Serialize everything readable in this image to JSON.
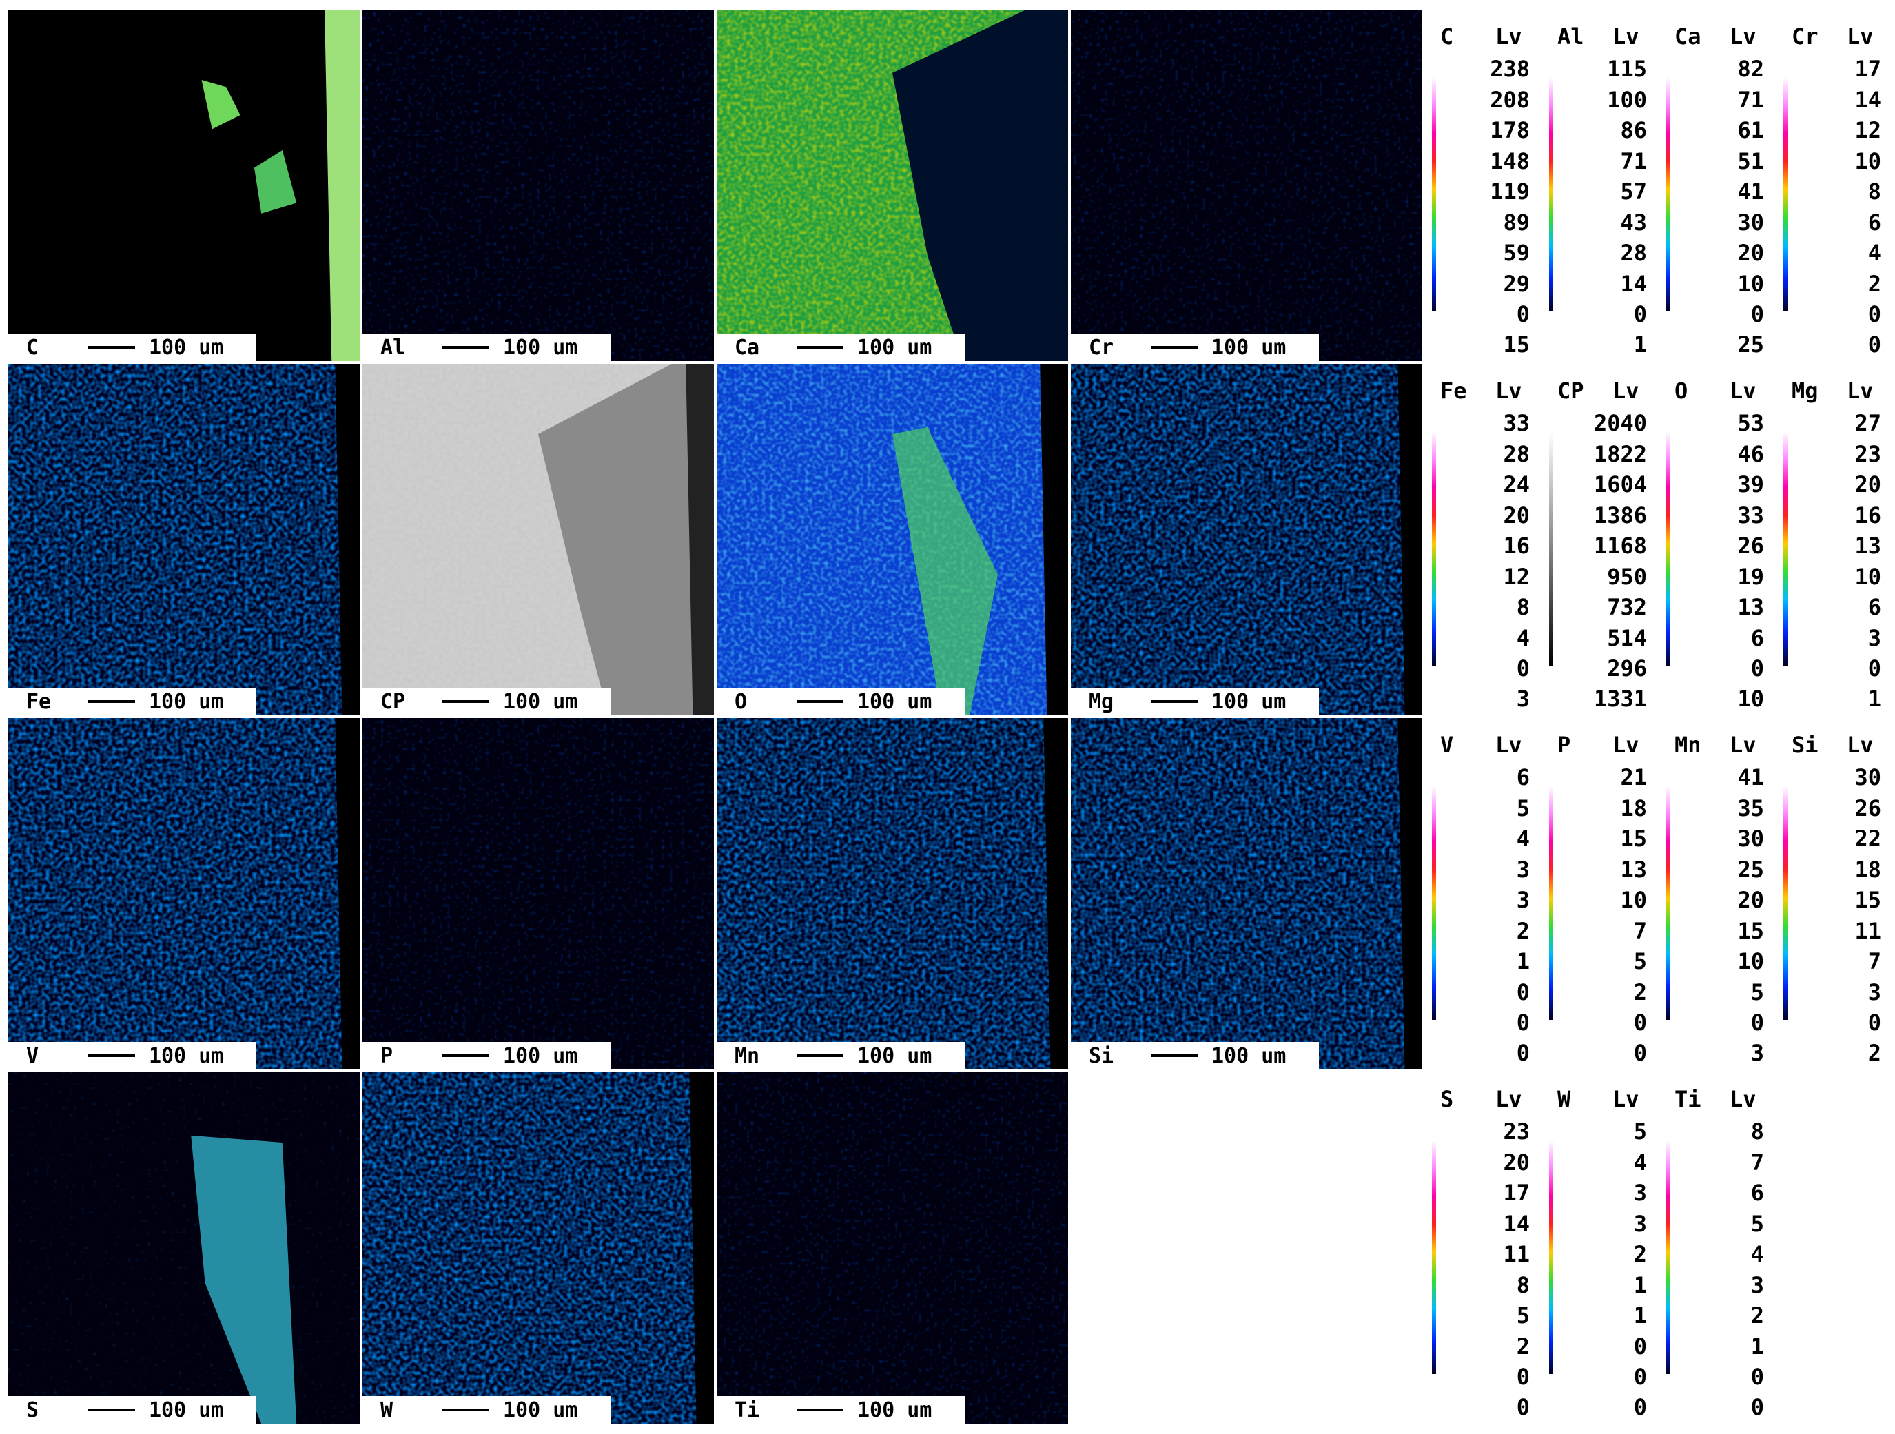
{
  "scale_label": "100 um",
  "panels": [
    {
      "element": "C",
      "style": "carbon"
    },
    {
      "element": "Al",
      "style": "sparse"
    },
    {
      "element": "Ca",
      "style": "calcium"
    },
    {
      "element": "Cr",
      "style": "sparse"
    },
    {
      "element": "Fe",
      "style": "blue"
    },
    {
      "element": "CP",
      "style": "grey"
    },
    {
      "element": "O",
      "style": "oxygen"
    },
    {
      "element": "Mg",
      "style": "blue"
    },
    {
      "element": "V",
      "style": "blue"
    },
    {
      "element": "P",
      "style": "sparse"
    },
    {
      "element": "Mn",
      "style": "blue"
    },
    {
      "element": "Si",
      "style": "blue"
    },
    {
      "element": "S",
      "style": "sulfur"
    },
    {
      "element": "W",
      "style": "blue"
    },
    {
      "element": "Ti",
      "style": "sparse"
    }
  ],
  "legend": [
    {
      "columns": [
        {
          "element": "C",
          "unit": "Lv",
          "levels": [
            "238",
            "208",
            "178",
            "148",
            "119",
            "89",
            "59",
            "29",
            "0"
          ],
          "bottom": "15"
        },
        {
          "element": "Al",
          "unit": "Lv",
          "levels": [
            "115",
            "100",
            "86",
            "71",
            "57",
            "43",
            "28",
            "14",
            "0"
          ],
          "bottom": "1"
        },
        {
          "element": "Ca",
          "unit": "Lv",
          "levels": [
            "82",
            "71",
            "61",
            "51",
            "41",
            "30",
            "20",
            "10",
            "0"
          ],
          "bottom": "25"
        },
        {
          "element": "Cr",
          "unit": "Lv",
          "levels": [
            "17",
            "14",
            "12",
            "10",
            "8",
            "6",
            "4",
            "2",
            "0"
          ],
          "bottom": "0"
        }
      ]
    },
    {
      "columns": [
        {
          "element": "Fe",
          "unit": "Lv",
          "levels": [
            "33",
            "28",
            "24",
            "20",
            "16",
            "12",
            "8",
            "4",
            "0"
          ],
          "bottom": "3"
        },
        {
          "element": "CP",
          "unit": "Lv",
          "levels": [
            "2040",
            "1822",
            "1604",
            "1386",
            "1168",
            "950",
            "732",
            "514",
            "296"
          ],
          "bottom": "1331",
          "grey": true
        },
        {
          "element": "O",
          "unit": "Lv",
          "levels": [
            "53",
            "46",
            "39",
            "33",
            "26",
            "19",
            "13",
            "6",
            "0"
          ],
          "bottom": "10"
        },
        {
          "element": "Mg",
          "unit": "Lv",
          "levels": [
            "27",
            "23",
            "20",
            "16",
            "13",
            "10",
            "6",
            "3",
            "0"
          ],
          "bottom": "1"
        }
      ]
    },
    {
      "columns": [
        {
          "element": "V",
          "unit": "Lv",
          "levels": [
            "6",
            "5",
            "4",
            "3",
            "3",
            "2",
            "1",
            "0",
            "0"
          ],
          "bottom": "0"
        },
        {
          "element": "P",
          "unit": "Lv",
          "levels": [
            "21",
            "18",
            "15",
            "13",
            "10",
            "7",
            "5",
            "2",
            "0"
          ],
          "bottom": "0"
        },
        {
          "element": "Mn",
          "unit": "Lv",
          "levels": [
            "41",
            "35",
            "30",
            "25",
            "20",
            "15",
            "10",
            "5",
            "0"
          ],
          "bottom": "3"
        },
        {
          "element": "Si",
          "unit": "Lv",
          "levels": [
            "30",
            "26",
            "22",
            "18",
            "15",
            "11",
            "7",
            "3",
            "0"
          ],
          "bottom": "2"
        }
      ]
    },
    {
      "columns": [
        {
          "element": "S",
          "unit": "Lv",
          "levels": [
            "23",
            "20",
            "17",
            "14",
            "11",
            "8",
            "5",
            "2",
            "0"
          ],
          "bottom": "0"
        },
        {
          "element": "W",
          "unit": "Lv",
          "levels": [
            "5",
            "4",
            "3",
            "3",
            "2",
            "1",
            "1",
            "0",
            "0"
          ],
          "bottom": "0"
        },
        {
          "element": "Ti",
          "unit": "Lv",
          "levels": [
            "8",
            "7",
            "6",
            "5",
            "4",
            "3",
            "2",
            "1",
            "0"
          ],
          "bottom": "0"
        }
      ]
    }
  ]
}
